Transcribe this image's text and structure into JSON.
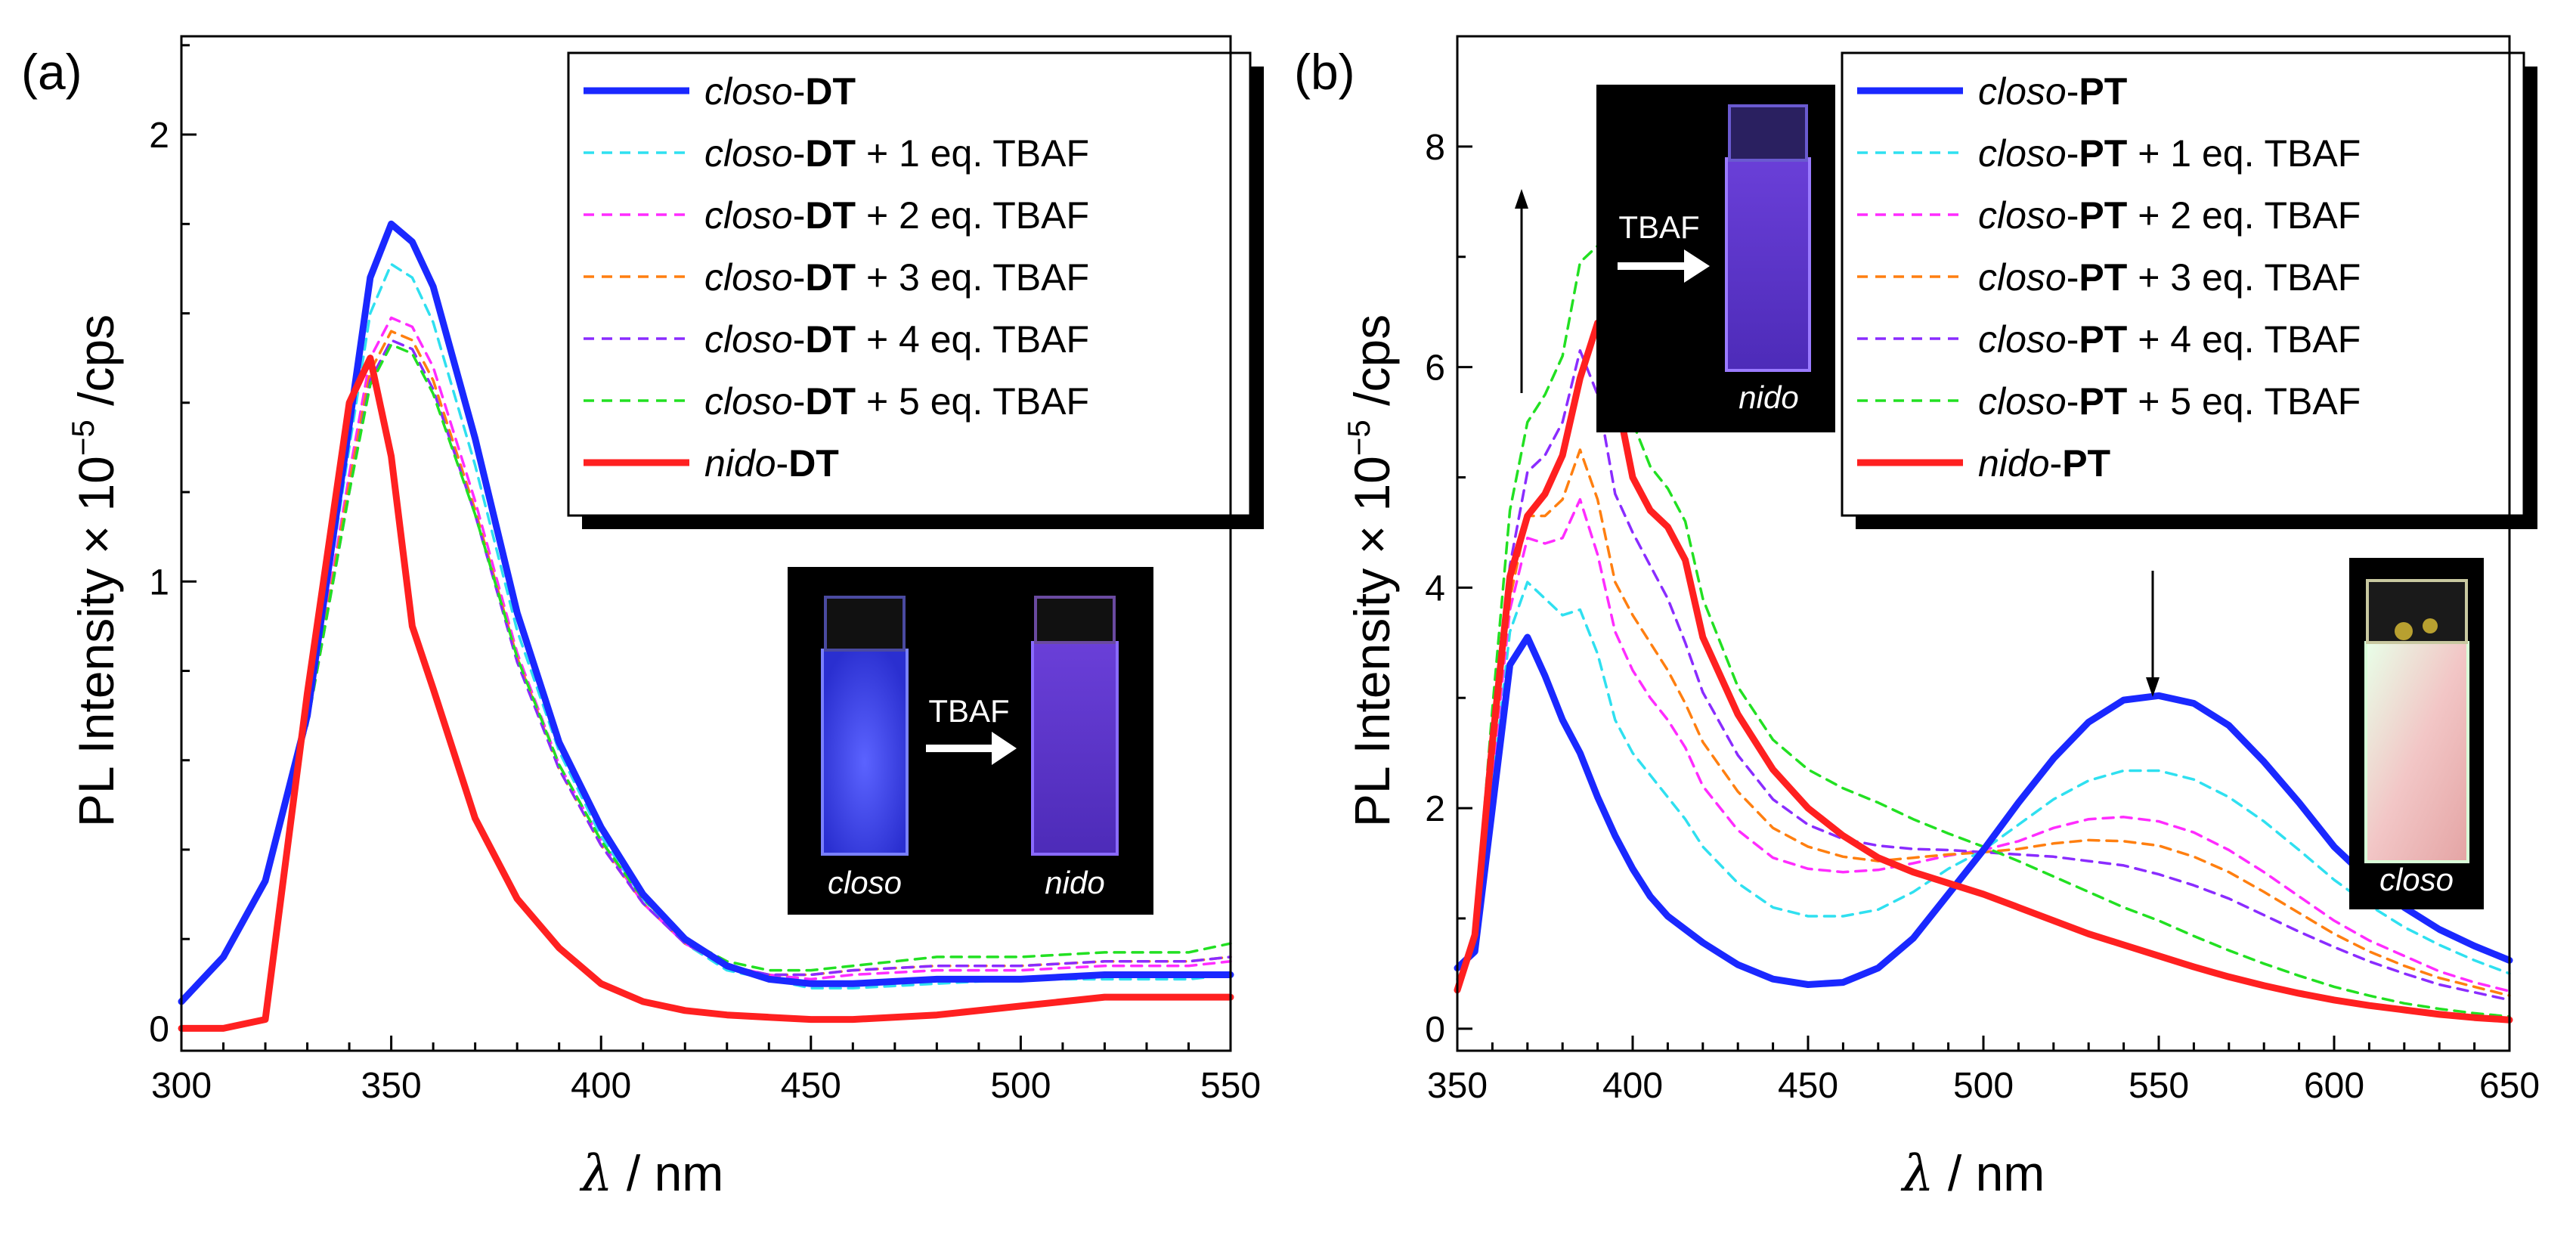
{
  "colors": {
    "blue": "#1a28ff",
    "cyan": "#2fe0f0",
    "magenta": "#ff2cff",
    "orange": "#ff7f10",
    "violet": "#8a2cff",
    "green": "#22e022",
    "red": "#ff2020"
  },
  "chart_data": [
    {
      "type": "line",
      "panel_label": "(a)",
      "xlabel_symbol": "λ",
      "xlabel_unit": " / nm",
      "ylabel": "PL Intensity × 10",
      "ylabel_exp": "−5",
      "ylabel_unit": " /cps",
      "xlim": [
        300,
        550
      ],
      "ylim": [
        -0.05,
        2.22
      ],
      "xticks": [
        300,
        350,
        400,
        450,
        500,
        550
      ],
      "yticks": [
        0,
        1,
        2
      ],
      "legend_position": "top-right",
      "x": [
        300,
        310,
        320,
        330,
        340,
        345,
        350,
        355,
        360,
        370,
        380,
        390,
        400,
        410,
        420,
        430,
        440,
        450,
        460,
        480,
        500,
        520,
        540,
        550
      ],
      "series": [
        {
          "name": "closo-DT",
          "italic": "closo",
          "bold": "DT",
          "suffix": "",
          "style": "solid",
          "color_key": "blue",
          "values": [
            0.06,
            0.16,
            0.33,
            0.7,
            1.35,
            1.68,
            1.8,
            1.76,
            1.66,
            1.32,
            0.93,
            0.64,
            0.45,
            0.3,
            0.2,
            0.14,
            0.11,
            0.1,
            0.1,
            0.11,
            0.11,
            0.12,
            0.12,
            0.12
          ]
        },
        {
          "name": "closo-DT + 1 eq. TBAF",
          "italic": "closo",
          "bold": "DT",
          "suffix": " + 1 eq. TBAF",
          "style": "dashed",
          "color_key": "cyan",
          "values": [
            0.06,
            0.16,
            0.33,
            0.69,
            1.3,
            1.6,
            1.71,
            1.68,
            1.58,
            1.26,
            0.89,
            0.62,
            0.43,
            0.29,
            0.19,
            0.13,
            0.11,
            0.09,
            0.09,
            0.1,
            0.11,
            0.11,
            0.11,
            0.12
          ]
        },
        {
          "name": "closo-DT + 2 eq. TBAF",
          "italic": "closo",
          "bold": "DT",
          "suffix": " + 2 eq. TBAF",
          "style": "dashed",
          "color_key": "magenta",
          "values": [
            0.06,
            0.16,
            0.33,
            0.68,
            1.24,
            1.5,
            1.59,
            1.57,
            1.48,
            1.18,
            0.84,
            0.59,
            0.42,
            0.28,
            0.19,
            0.14,
            0.12,
            0.11,
            0.12,
            0.13,
            0.13,
            0.14,
            0.14,
            0.15
          ]
        },
        {
          "name": "closo-DT + 3 eq. TBAF",
          "italic": "closo",
          "bold": "DT",
          "suffix": " + 3 eq. TBAF",
          "style": "dashed",
          "color_key": "orange",
          "values": [
            0.06,
            0.16,
            0.33,
            0.68,
            1.22,
            1.47,
            1.56,
            1.54,
            1.45,
            1.16,
            0.83,
            0.58,
            0.41,
            0.28,
            0.19,
            0.14,
            0.12,
            0.12,
            0.13,
            0.14,
            0.14,
            0.15,
            0.15,
            0.16
          ]
        },
        {
          "name": "closo-DT + 4 eq. TBAF",
          "italic": "closo",
          "bold": "DT",
          "suffix": " + 4 eq. TBAF",
          "style": "dashed",
          "color_key": "violet",
          "values": [
            0.06,
            0.16,
            0.33,
            0.68,
            1.2,
            1.45,
            1.54,
            1.52,
            1.43,
            1.15,
            0.82,
            0.58,
            0.41,
            0.28,
            0.19,
            0.14,
            0.12,
            0.12,
            0.13,
            0.14,
            0.14,
            0.15,
            0.15,
            0.16
          ]
        },
        {
          "name": "closo-DT + 5 eq. TBAF",
          "italic": "closo",
          "bold": "DT",
          "suffix": " + 5 eq. TBAF",
          "style": "dashed",
          "color_key": "green",
          "values": [
            0.06,
            0.16,
            0.33,
            0.68,
            1.2,
            1.44,
            1.53,
            1.51,
            1.42,
            1.15,
            0.83,
            0.59,
            0.42,
            0.29,
            0.2,
            0.15,
            0.13,
            0.13,
            0.14,
            0.16,
            0.16,
            0.17,
            0.17,
            0.19
          ]
        },
        {
          "name": "nido-DT",
          "italic": "nido",
          "bold": "DT",
          "suffix": "",
          "style": "solid",
          "color_key": "red",
          "values": [
            0.0,
            0.0,
            0.02,
            0.75,
            1.4,
            1.5,
            1.28,
            0.9,
            0.76,
            0.47,
            0.29,
            0.18,
            0.1,
            0.06,
            0.04,
            0.03,
            0.025,
            0.02,
            0.02,
            0.03,
            0.05,
            0.07,
            0.07,
            0.07
          ]
        }
      ],
      "inset": {
        "left_label": "closo",
        "right_label": "nido",
        "arrow_label": "TBAF"
      }
    },
    {
      "type": "line",
      "panel_label": "(b)",
      "xlabel_symbol": "λ",
      "xlabel_unit": " / nm",
      "ylabel": "PL Intensity × 10",
      "ylabel_exp": "−5",
      "ylabel_unit": " /cps",
      "xlim": [
        350,
        650
      ],
      "ylim": [
        -0.2,
        9.0
      ],
      "xticks": [
        350,
        400,
        450,
        500,
        550,
        600,
        650
      ],
      "yticks": [
        0,
        2,
        4,
        6,
        8
      ],
      "legend_position": "top-right",
      "x": [
        350,
        355,
        360,
        365,
        370,
        375,
        380,
        385,
        390,
        395,
        400,
        405,
        410,
        415,
        420,
        430,
        440,
        450,
        460,
        470,
        480,
        490,
        500,
        510,
        520,
        530,
        540,
        550,
        560,
        570,
        580,
        590,
        600,
        610,
        620,
        630,
        640,
        650
      ],
      "series": [
        {
          "name": "closo-PT",
          "italic": "closo",
          "bold": "PT",
          "suffix": "",
          "style": "solid",
          "color_key": "blue",
          "values": [
            0.55,
            0.7,
            2.0,
            3.3,
            3.55,
            3.2,
            2.8,
            2.5,
            2.1,
            1.75,
            1.45,
            1.2,
            1.02,
            0.9,
            0.78,
            0.58,
            0.45,
            0.4,
            0.42,
            0.55,
            0.82,
            1.22,
            1.62,
            2.05,
            2.45,
            2.78,
            2.98,
            3.02,
            2.95,
            2.75,
            2.42,
            2.05,
            1.65,
            1.35,
            1.1,
            0.9,
            0.75,
            0.62
          ]
        },
        {
          "name": "closo-PT + 1 eq. TBAF",
          "italic": "closo",
          "bold": "PT",
          "suffix": " + 1 eq. TBAF",
          "style": "dashed",
          "color_key": "cyan",
          "values": [
            0.45,
            0.75,
            2.2,
            3.6,
            4.05,
            3.9,
            3.75,
            3.8,
            3.4,
            2.8,
            2.5,
            2.3,
            2.1,
            1.9,
            1.65,
            1.32,
            1.1,
            1.02,
            1.02,
            1.08,
            1.24,
            1.45,
            1.62,
            1.85,
            2.08,
            2.25,
            2.34,
            2.34,
            2.26,
            2.1,
            1.88,
            1.62,
            1.35,
            1.12,
            0.92,
            0.76,
            0.62,
            0.5
          ]
        },
        {
          "name": "closo-PT + 2 eq. TBAF",
          "italic": "closo",
          "bold": "PT",
          "suffix": " + 2 eq. TBAF",
          "style": "dashed",
          "color_key": "magenta",
          "values": [
            0.4,
            0.75,
            2.3,
            3.8,
            4.45,
            4.4,
            4.45,
            4.8,
            4.3,
            3.6,
            3.25,
            3.0,
            2.8,
            2.55,
            2.2,
            1.8,
            1.55,
            1.45,
            1.42,
            1.44,
            1.5,
            1.57,
            1.62,
            1.7,
            1.82,
            1.9,
            1.92,
            1.88,
            1.78,
            1.62,
            1.42,
            1.2,
            0.98,
            0.8,
            0.66,
            0.52,
            0.42,
            0.34
          ]
        },
        {
          "name": "closo-PT + 3 eq. TBAF",
          "italic": "closo",
          "bold": "PT",
          "suffix": " + 3 eq. TBAF",
          "style": "dashed",
          "color_key": "orange",
          "values": [
            0.4,
            0.75,
            2.4,
            3.9,
            4.65,
            4.65,
            4.8,
            5.25,
            4.8,
            4.05,
            3.75,
            3.5,
            3.25,
            2.95,
            2.6,
            2.15,
            1.82,
            1.65,
            1.56,
            1.52,
            1.55,
            1.58,
            1.6,
            1.63,
            1.68,
            1.71,
            1.7,
            1.66,
            1.56,
            1.42,
            1.24,
            1.05,
            0.86,
            0.7,
            0.57,
            0.46,
            0.38,
            0.3
          ]
        },
        {
          "name": "closo-PT + 4 eq. TBAF",
          "italic": "closo",
          "bold": "PT",
          "suffix": " + 4 eq. TBAF",
          "style": "dashed",
          "color_key": "violet",
          "values": [
            0.4,
            0.8,
            2.6,
            4.2,
            5.05,
            5.2,
            5.5,
            6.15,
            5.75,
            4.85,
            4.5,
            4.2,
            3.9,
            3.5,
            3.05,
            2.48,
            2.08,
            1.85,
            1.72,
            1.66,
            1.63,
            1.62,
            1.6,
            1.58,
            1.56,
            1.52,
            1.48,
            1.4,
            1.3,
            1.18,
            1.03,
            0.88,
            0.74,
            0.61,
            0.5,
            0.4,
            0.33,
            0.26
          ]
        },
        {
          "name": "closo-PT + 5 eq. TBAF",
          "italic": "closo",
          "bold": "PT",
          "suffix": " + 5 eq. TBAF",
          "style": "dashed",
          "color_key": "green",
          "values": [
            0.4,
            0.9,
            2.9,
            4.7,
            5.5,
            5.75,
            6.1,
            6.95,
            7.1,
            6.1,
            5.5,
            5.1,
            4.9,
            4.6,
            3.9,
            3.1,
            2.62,
            2.35,
            2.18,
            2.05,
            1.9,
            1.77,
            1.65,
            1.52,
            1.38,
            1.24,
            1.1,
            0.98,
            0.84,
            0.71,
            0.59,
            0.48,
            0.38,
            0.3,
            0.23,
            0.18,
            0.14,
            0.11
          ]
        },
        {
          "name": "nido-PT",
          "italic": "nido",
          "bold": "PT",
          "suffix": "",
          "style": "solid",
          "color_key": "red",
          "values": [
            0.35,
            0.85,
            2.6,
            4.1,
            4.65,
            4.85,
            5.2,
            5.9,
            6.4,
            5.8,
            5.0,
            4.7,
            4.55,
            4.25,
            3.55,
            2.85,
            2.35,
            2.0,
            1.75,
            1.55,
            1.42,
            1.32,
            1.22,
            1.1,
            0.98,
            0.86,
            0.76,
            0.66,
            0.56,
            0.47,
            0.39,
            0.32,
            0.26,
            0.21,
            0.17,
            0.13,
            0.1,
            0.08
          ]
        }
      ],
      "inset": {
        "top_label": "nido",
        "bottom_label": "closo",
        "arrow_label": "TBAF"
      }
    }
  ]
}
